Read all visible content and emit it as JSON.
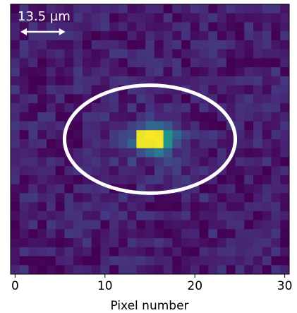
{
  "chart_data": {
    "type": "heatmap",
    "title": "",
    "xlabel": "Pixel number",
    "ylabel": "",
    "xlim": [
      -0.5,
      30.5
    ],
    "ylim": [
      -0.5,
      29.5
    ],
    "x_ticks": [
      0,
      10,
      20,
      30
    ],
    "x_tick_labels": [
      "0",
      "10",
      "20",
      "30"
    ],
    "grid": false,
    "colormap": "viridis",
    "spot": {
      "x": 15.5,
      "y": 14.5,
      "peak": 1.0
    },
    "background_level": 0.1,
    "annotations": {
      "scale_bar_label": "13.5 µm",
      "scale_bar_length_px": 5,
      "ellipse": {
        "cx": 15,
        "cy": 14.5,
        "rx": 9.5,
        "ry": 6
      }
    }
  },
  "colors": {
    "ellipse": "#ffffff",
    "scale_bar": "#ffffff",
    "axis": "#000000",
    "text": "#000000"
  }
}
